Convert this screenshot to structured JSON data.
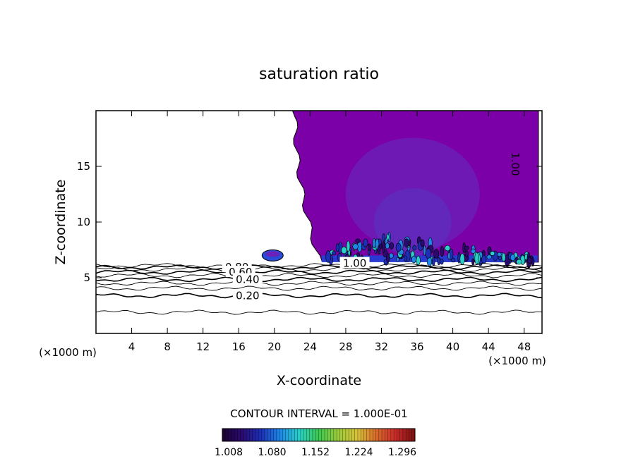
{
  "chart_data": {
    "type": "heatmap",
    "title": "saturation ratio",
    "xlabel": "X-coordinate",
    "ylabel": "Z-coordinate",
    "x_unit_left": "(×1000 m)",
    "x_unit_right": "(×1000 m)",
    "xlim": [
      0,
      50
    ],
    "ylim": [
      0,
      20
    ],
    "x_ticks": [
      4,
      8,
      12,
      16,
      20,
      24,
      28,
      32,
      36,
      40,
      44,
      48
    ],
    "y_ticks": [
      5,
      10,
      15
    ],
    "grid": false,
    "contour_interval_text": "CONTOUR INTERVAL = 1.000E-01",
    "colorbar": {
      "tick_labels": [
        "1.008",
        "1.080",
        "1.152",
        "1.224",
        "1.296"
      ],
      "range": [
        1.0,
        1.3
      ],
      "colors": [
        "#1a0030",
        "#2a0a6e",
        "#1c2fb5",
        "#1e88e6",
        "#2ad0c8",
        "#3cc850",
        "#9acc3a",
        "#d8c23a",
        "#d86a2a",
        "#c82a2a",
        "#7a1010"
      ]
    },
    "contour_labels": [
      {
        "text": "0.80",
        "x": 15.8,
        "z": 5.95
      },
      {
        "text": "0.60",
        "x": 16.2,
        "z": 5.5
      },
      {
        "text": "0.40",
        "x": 17.0,
        "z": 4.85
      },
      {
        "text": "0.20",
        "x": 17.0,
        "z": 3.4
      },
      {
        "text": "1.00",
        "x": 29.0,
        "z": 6.3
      },
      {
        "text": "1.00",
        "x": 47.0,
        "z": 15.2
      }
    ],
    "iso_lines_z": [
      1.9,
      3.4,
      4.05,
      4.5,
      4.85,
      5.2,
      5.5,
      5.75,
      5.95,
      6.1
    ],
    "supersaturated_region": {
      "description_value": 1.0,
      "base_z": 6.4,
      "top_z": 20,
      "x_start": 22.3,
      "x_end": 49.6,
      "fill": "#7b00a8",
      "inner_fill": "#6a22b8",
      "small_cell": {
        "x": 19.8,
        "z": 7.0
      }
    }
  }
}
